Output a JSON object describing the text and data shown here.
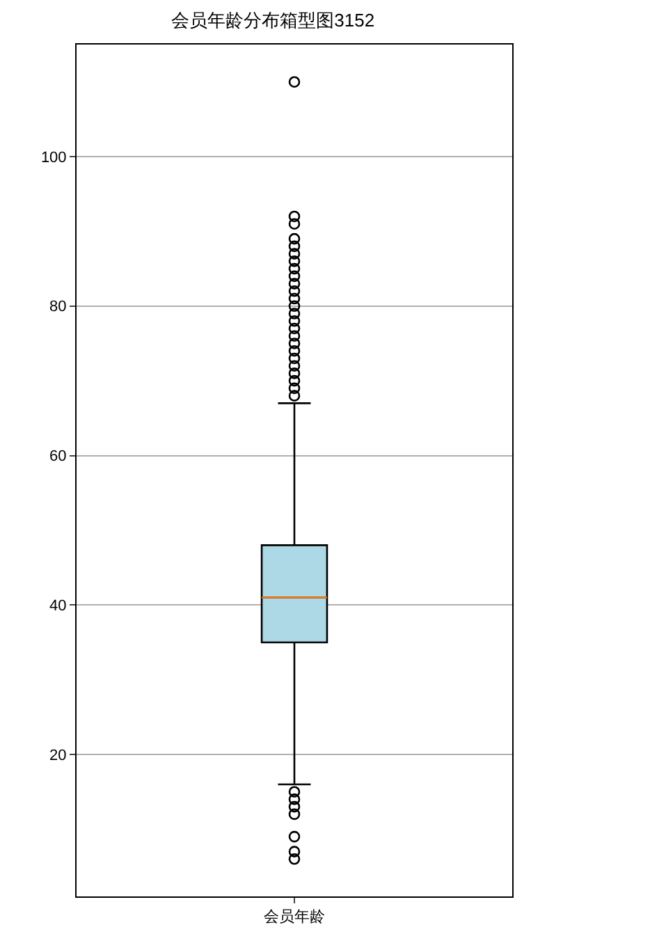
{
  "chart_data": {
    "type": "box",
    "title": "会员年龄分布箱型图3152",
    "categories": [
      "会员年龄"
    ],
    "series": [
      {
        "color": "#add8e6",
        "boxes": [
          {
            "low": 16,
            "q1": 35,
            "median": 41,
            "q3": 48,
            "high": 67,
            "outliers": [
              6,
              7,
              9,
              12,
              13,
              14,
              15,
              68,
              69,
              70,
              71,
              72,
              73,
              74,
              75,
              76,
              77,
              78,
              79,
              80,
              81,
              82,
              83,
              84,
              85,
              86,
              87,
              88,
              89,
              91,
              92,
              110
            ]
          }
        ]
      }
    ],
    "ylim": [
      1,
      115
    ],
    "yticks": [
      20,
      40,
      60,
      80,
      100
    ],
    "grid": "y",
    "marker": "circle"
  }
}
